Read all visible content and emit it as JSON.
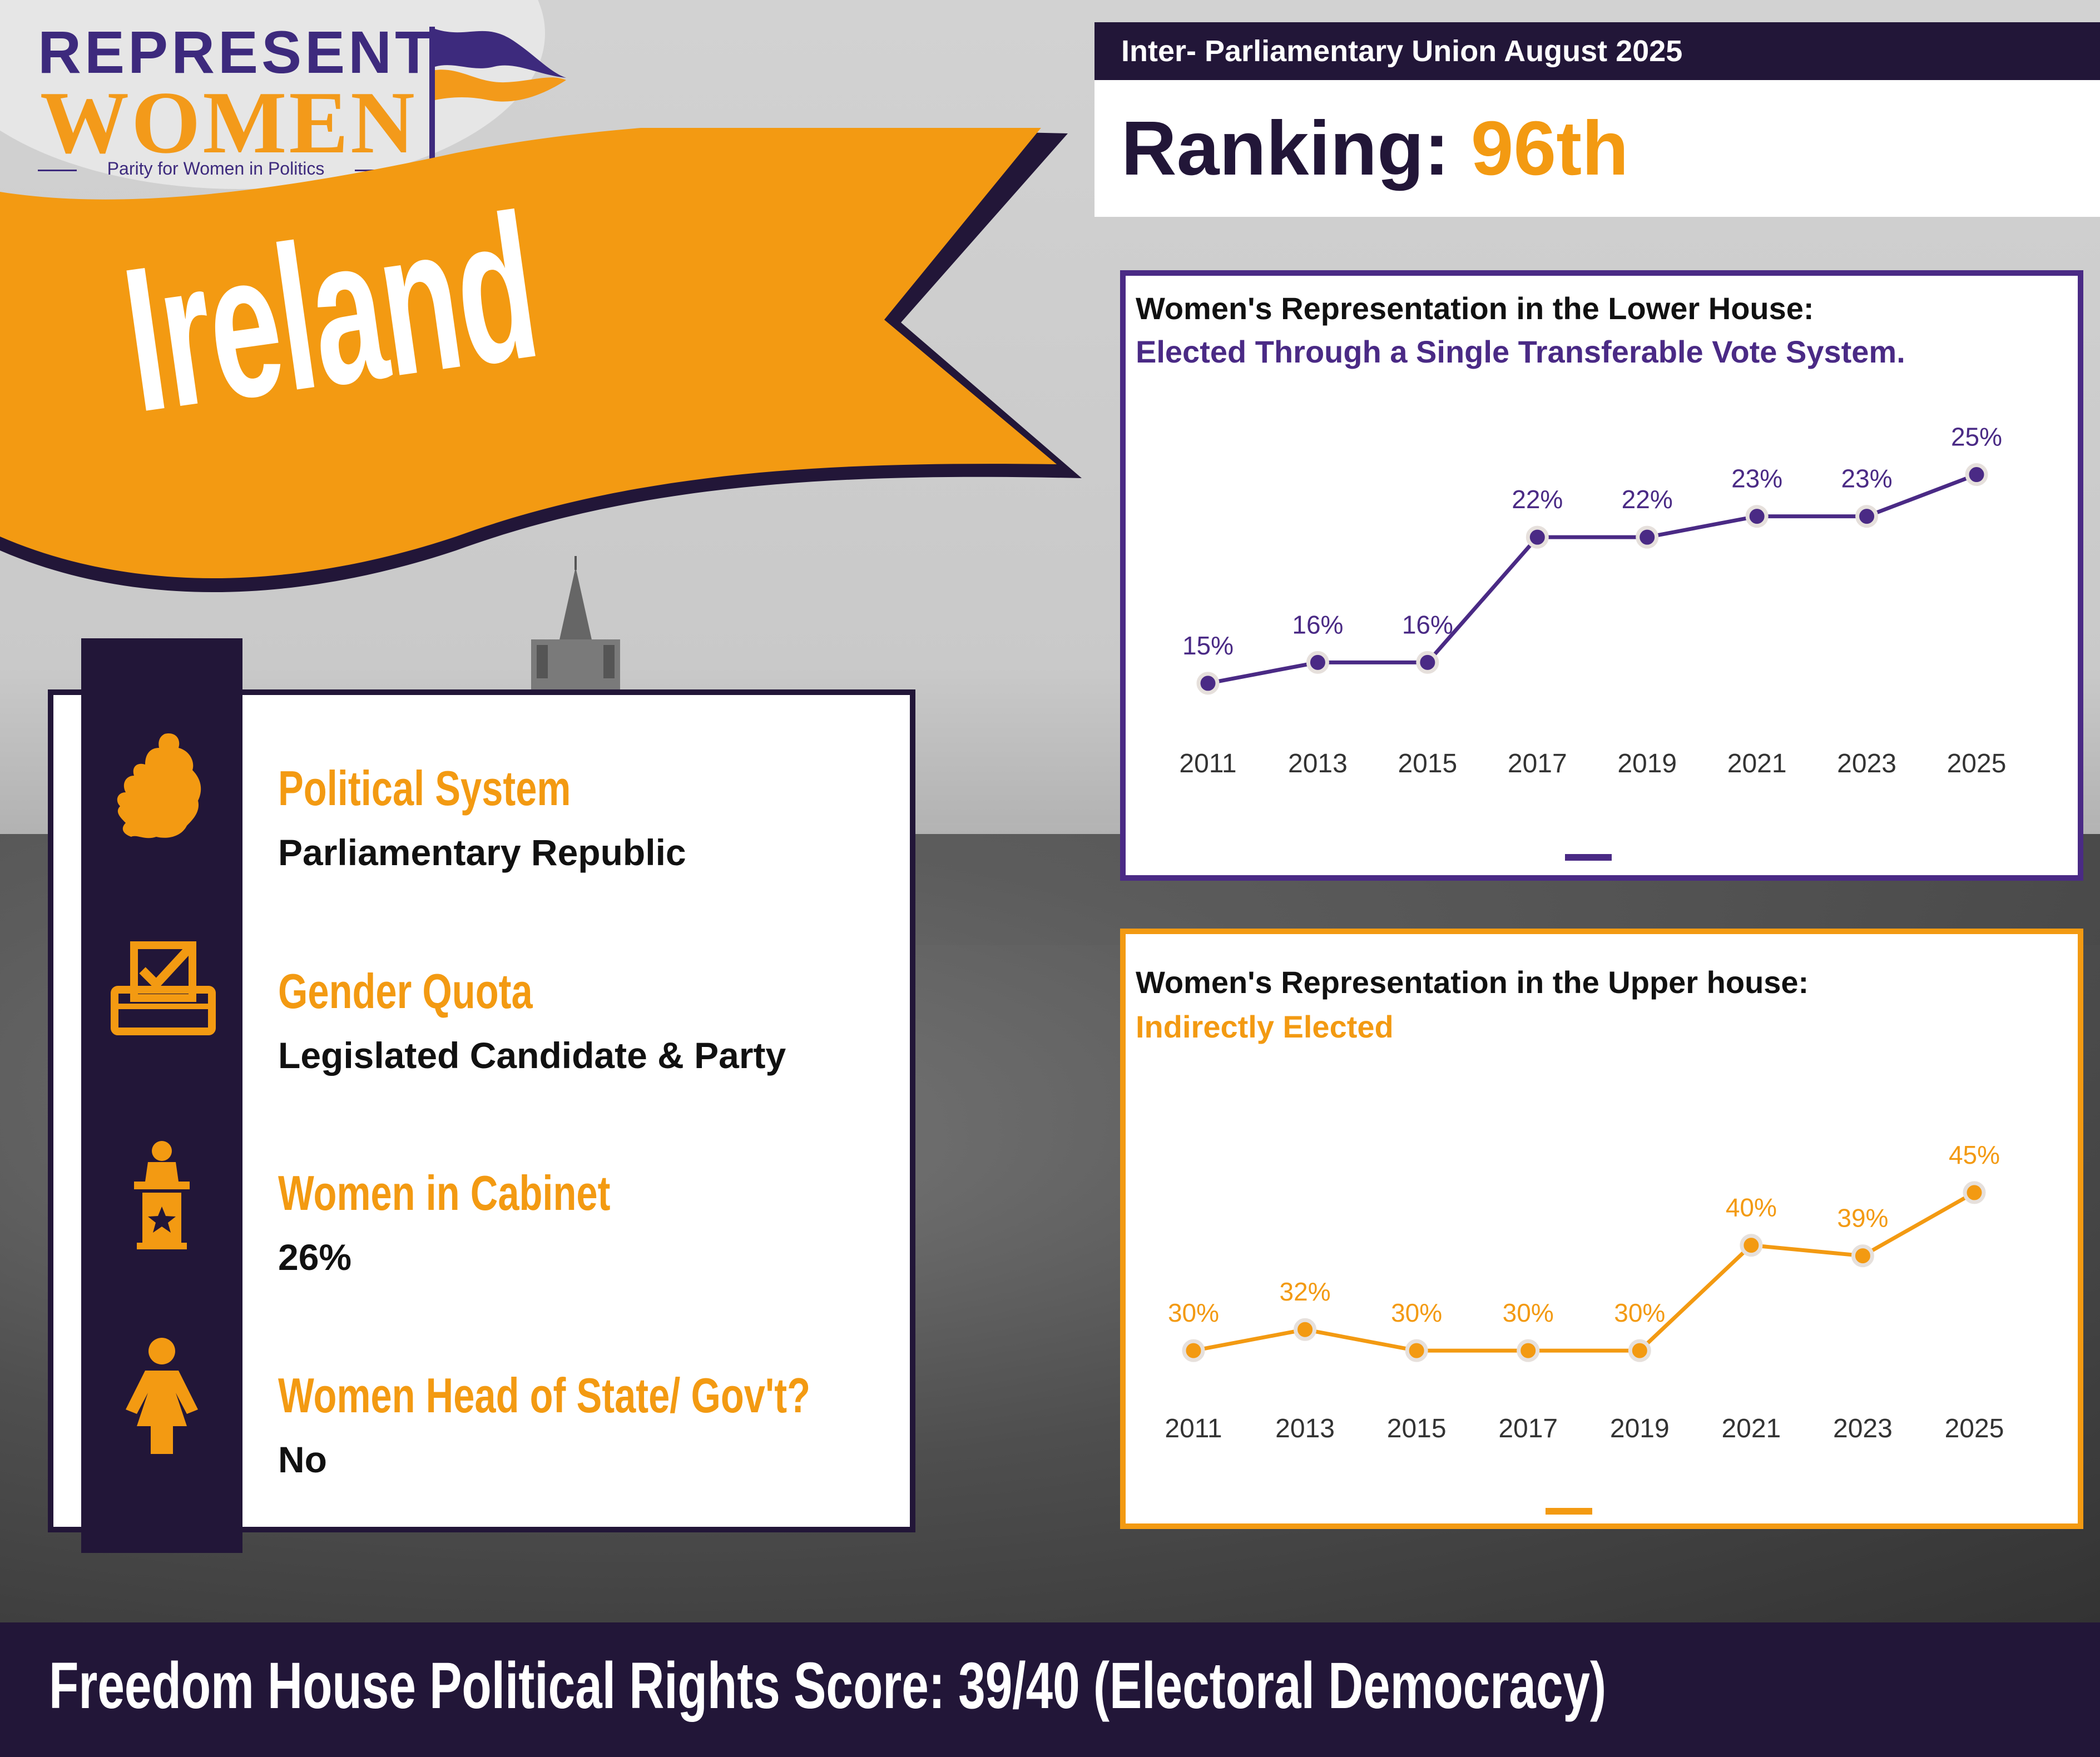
{
  "logo": {
    "line1": "REPRESENT",
    "line2": "WOMEN",
    "tagline": "Parity for Women in Politics"
  },
  "country": "Ireland",
  "ranking": {
    "source": "Inter- Parliamentary Union August 2025",
    "label": "Ranking:",
    "value": "96th"
  },
  "info": [
    {
      "icon": "ireland-map-icon",
      "title": "Political System",
      "value": "Parliamentary Republic"
    },
    {
      "icon": "ballot-box-icon",
      "title": "Gender Quota",
      "value": "Legislated Candidate  & Party"
    },
    {
      "icon": "podium-icon",
      "title": "Women in Cabinet",
      "value": "26%"
    },
    {
      "icon": "woman-icon",
      "title": "Women Head of State/ Gov't?",
      "value": "No"
    }
  ],
  "colors": {
    "purple": "#4a2a85",
    "dark": "#221638",
    "orange": "#f39a12"
  },
  "chart_data": [
    {
      "type": "line",
      "title": "Women's Representation in the Lower House:",
      "subtitle": "Elected Through a Single Transferable Vote System.",
      "categories": [
        "2011",
        "2013",
        "2015",
        "2017",
        "2019",
        "2021",
        "2023",
        "2025"
      ],
      "values": [
        15,
        16,
        16,
        22,
        22,
        23,
        23,
        25
      ],
      "labels": [
        "15%",
        "16%",
        "16%",
        "22%",
        "22%",
        "23%",
        "23%",
        "25%"
      ],
      "ylim": [
        13,
        26
      ],
      "color": "#4a2a85",
      "grid": false
    },
    {
      "type": "line",
      "title": "Women's Representation in the Upper house:",
      "subtitle": "Indirectly Elected",
      "categories": [
        "2011",
        "2013",
        "2015",
        "2017",
        "2019",
        "2021",
        "2023",
        "2025"
      ],
      "values": [
        30,
        32,
        30,
        30,
        30,
        40,
        39,
        45
      ],
      "labels": [
        "30%",
        "32%",
        "30%",
        "30%",
        "30%",
        "40%",
        "39%",
        "45%"
      ],
      "ylim": [
        28,
        47
      ],
      "color": "#f39a12",
      "grid": false
    }
  ],
  "footer": "Freedom House Political Rights Score: 39/40 (Electoral Democracy)"
}
